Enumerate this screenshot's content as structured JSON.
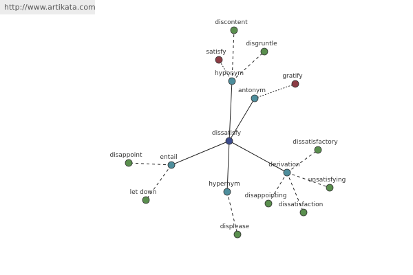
{
  "header": {
    "url": "http://www.artikata.com"
  },
  "nodes": [
    {
      "label": "dissatisfy"
    },
    {
      "label": "hyponym"
    },
    {
      "label": "antonym"
    },
    {
      "label": "entail"
    },
    {
      "label": "hypernym"
    },
    {
      "label": "derivation"
    },
    {
      "label": "discontent"
    },
    {
      "label": "disgruntle"
    },
    {
      "label": "satisfy"
    },
    {
      "label": "gratify"
    },
    {
      "label": "disappoint"
    },
    {
      "label": "let down"
    },
    {
      "label": "displease"
    },
    {
      "label": "dissatisfactory"
    },
    {
      "label": "unsatisfying"
    },
    {
      "label": "disappointing"
    },
    {
      "label": "dissatisfaction"
    }
  ]
}
